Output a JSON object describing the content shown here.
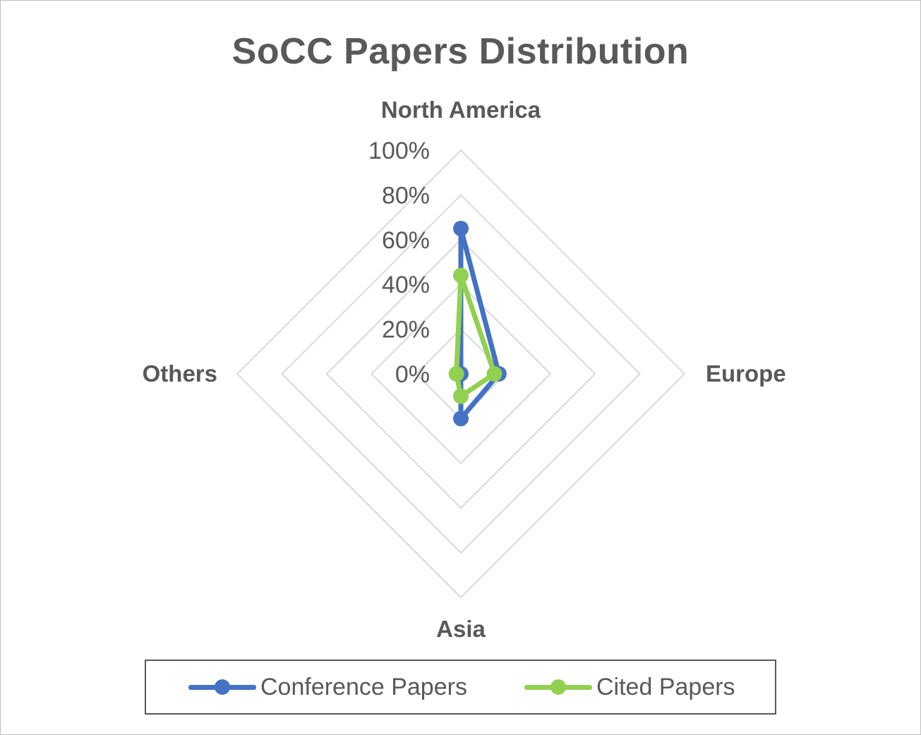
{
  "chart_data": {
    "type": "radar",
    "title": "SoCC Papers Distribution",
    "categories": [
      "North America",
      "Europe",
      "Asia",
      "Others"
    ],
    "axis_ticks": [
      "0%",
      "20%",
      "40%",
      "60%",
      "80%",
      "100%"
    ],
    "r_range": [
      0,
      1
    ],
    "grid": true,
    "legend_position": "bottom",
    "series": [
      {
        "name": "Conference Papers",
        "values": [
          0.65,
          0.17,
          0.2,
          0.0
        ],
        "color": "#4472c4"
      },
      {
        "name": "Cited Papers",
        "values": [
          0.44,
          0.15,
          0.1,
          0.02
        ],
        "color": "#92d050"
      }
    ]
  },
  "colors": {
    "grid": "#d9d9d9",
    "axis_text": "#595959",
    "tick_text": "#595959"
  }
}
